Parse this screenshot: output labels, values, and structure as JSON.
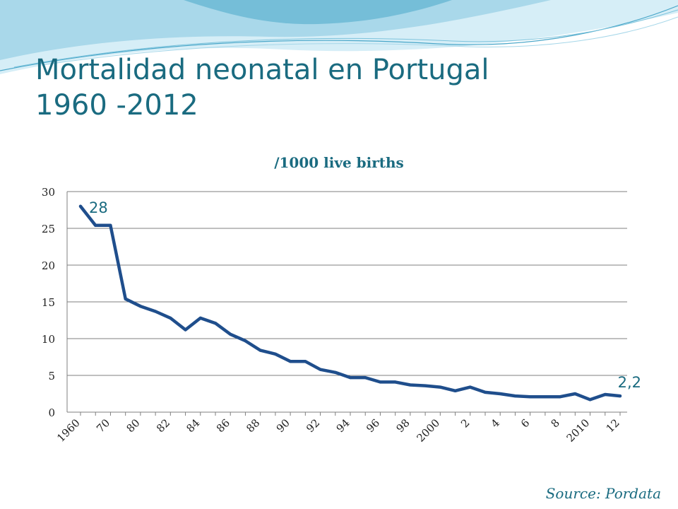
{
  "slide": {
    "title_line1": "Mortalidad neonatal en Portugal",
    "title_line2": "1960 -2012",
    "source": "Source: Pordata"
  },
  "colors": {
    "title": "#1a6b80",
    "line": "#1f4e8c",
    "annotation": "#1a6b80",
    "swoosh_dark": "#5fb4d0",
    "swoosh_light": "#d6eef7"
  },
  "chart_data": {
    "type": "line",
    "title": "/1000 live births",
    "xlabel": "",
    "ylabel": "",
    "ylim": [
      0,
      30
    ],
    "yticks": [
      0,
      5,
      10,
      15,
      20,
      25,
      30
    ],
    "grid": true,
    "legend": "none",
    "categories": [
      "1960",
      "",
      "70",
      "",
      "80",
      "",
      "82",
      "",
      "84",
      "",
      "86",
      "",
      "88",
      "",
      "90",
      "",
      "92",
      "",
      "94",
      "",
      "96",
      "",
      "98",
      "",
      "2000",
      "",
      "2",
      "",
      "4",
      "",
      "6",
      "",
      "8",
      "",
      "2010",
      "",
      "12"
    ],
    "series": [
      {
        "values": [
          28,
          25.4,
          25.4,
          15.4,
          14.4,
          13.7,
          12.8,
          11.2,
          12.8,
          12.1,
          10.6,
          9.7,
          8.4,
          7.9,
          6.9,
          6.9,
          5.8,
          5.4,
          4.7,
          4.7,
          4.1,
          4.1,
          3.7,
          3.6,
          3.4,
          2.9,
          3.4,
          2.7,
          2.5,
          2.2,
          2.1,
          2.1,
          2.1,
          2.5,
          1.7,
          2.4,
          2.2
        ]
      }
    ],
    "annotations": [
      {
        "text": "28",
        "point_index": 0
      },
      {
        "text": "2,2",
        "point_index": 36
      }
    ]
  }
}
